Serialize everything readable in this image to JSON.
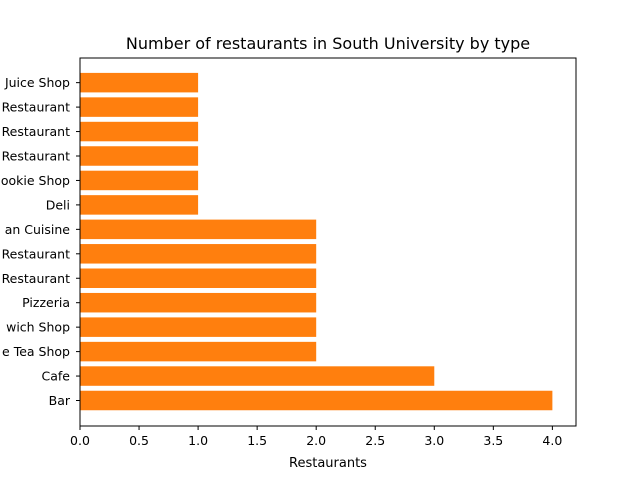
{
  "chart_data": {
    "type": "bar",
    "orientation": "horizontal",
    "title": "Number of restaurants in South University by type",
    "xlabel": "Restaurants",
    "ylabel": "",
    "xlim": [
      0,
      4.2
    ],
    "xticks": [
      "0.0",
      "0.5",
      "1.0",
      "1.5",
      "2.0",
      "2.5",
      "3.0",
      "3.5",
      "4.0"
    ],
    "categories": [
      "Bar",
      "Cafe",
      "e Tea Shop",
      "wich Shop",
      "Pizzeria",
      "Restaurant",
      "Restaurant",
      "an Cuisine",
      "Deli",
      "ookie Shop",
      "Restaurant",
      "Restaurant",
      "Restaurant",
      "Juice Shop"
    ],
    "values": [
      4,
      3,
      2,
      2,
      2,
      2,
      2,
      2,
      1,
      1,
      1,
      1,
      1,
      1
    ],
    "bar_color": "#ff7f0e",
    "grid": false,
    "legend": "none"
  }
}
